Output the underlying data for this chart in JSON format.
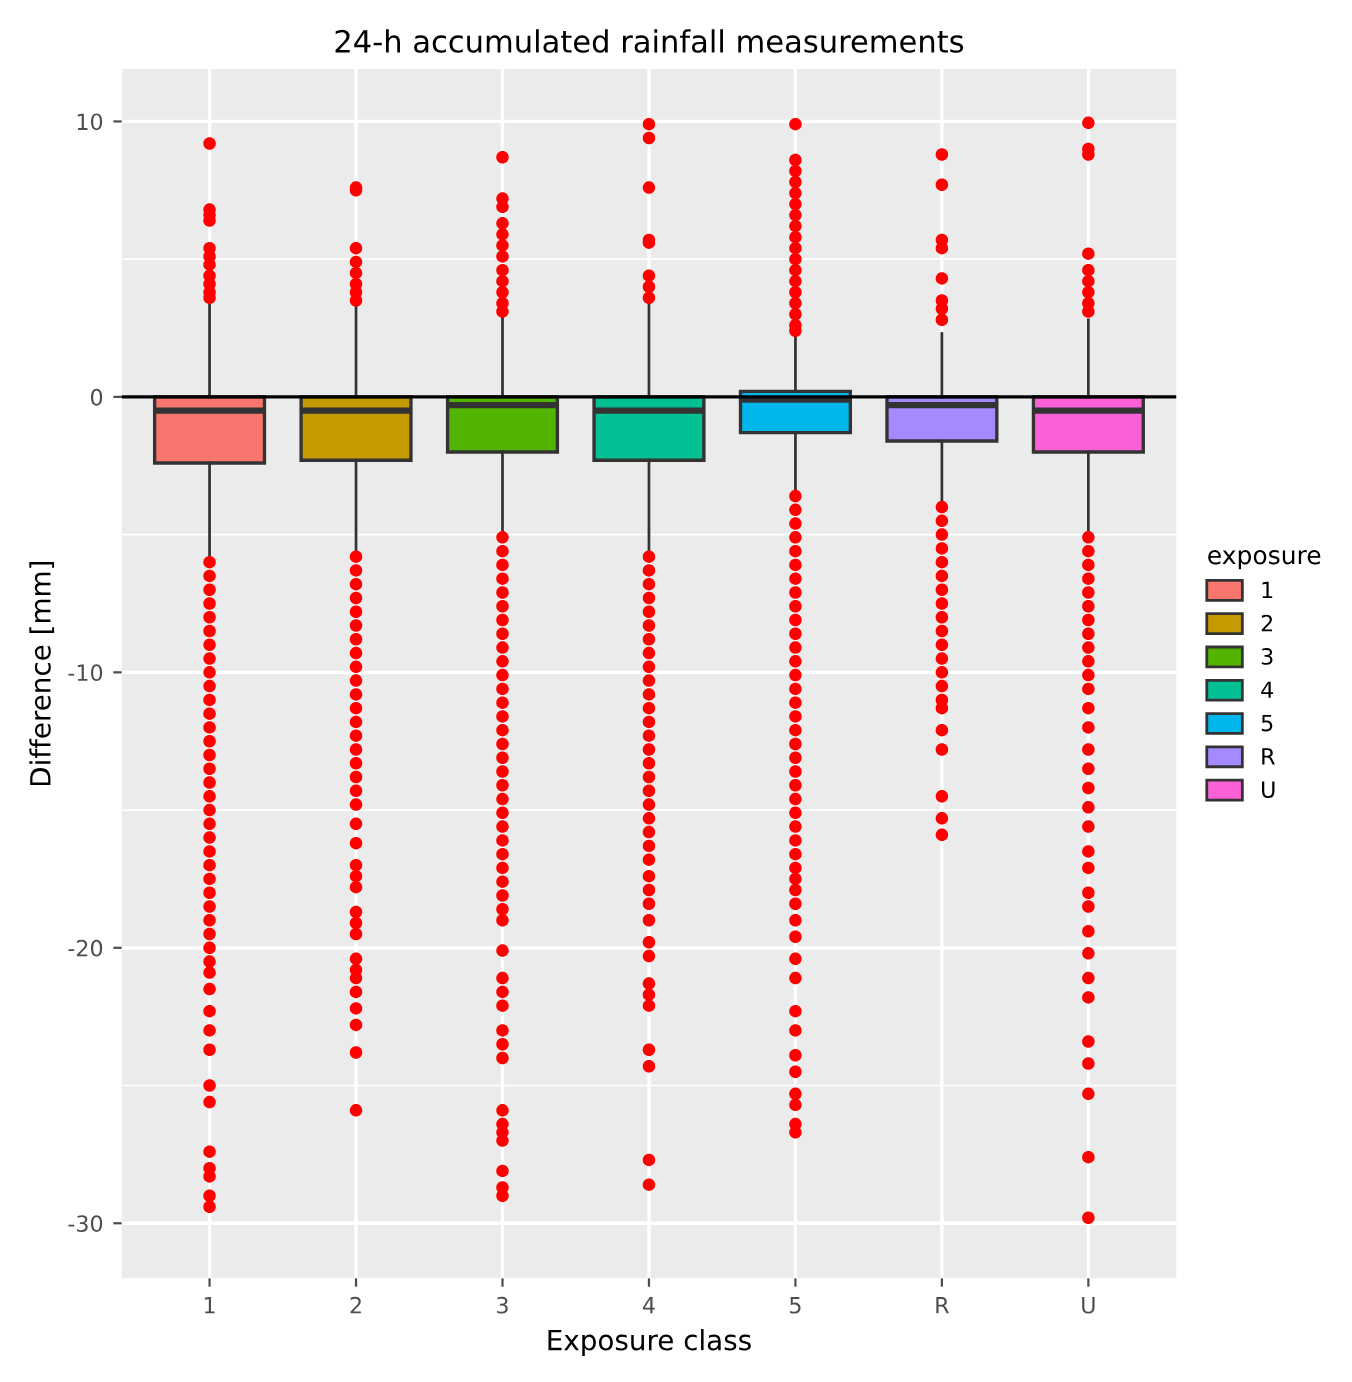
{
  "chart_data": {
    "type": "box",
    "title": "24-h accumulated rainfall measurements",
    "xlabel": "Exposure class",
    "ylabel": "Difference [mm]",
    "legend_title": "exposure",
    "categories": [
      "1",
      "2",
      "3",
      "4",
      "5",
      "R",
      "U"
    ],
    "series": [
      {
        "name": "1",
        "color": "#f8766d",
        "boxes": [
          {
            "low": -5.9,
            "q1": -2.4,
            "median": -0.5,
            "q3": 0.0,
            "high": 3.5,
            "outliers": [
              9.2,
              6.8,
              6.6,
              6.4,
              5.4,
              5.1,
              4.8,
              4.4,
              4.1,
              3.8,
              3.6,
              -6.0,
              -6.5,
              -7.0,
              -7.5,
              -8.0,
              -8.5,
              -9.0,
              -9.5,
              -10.0,
              -10.5,
              -11.0,
              -11.5,
              -12.0,
              -12.5,
              -13.0,
              -13.5,
              -14.0,
              -14.5,
              -15.0,
              -15.5,
              -16.0,
              -16.5,
              -17.0,
              -17.5,
              -18.0,
              -18.5,
              -19.0,
              -19.5,
              -20.0,
              -20.5,
              -20.9,
              -21.5,
              -22.3,
              -23.0,
              -23.7,
              -25.0,
              -25.6,
              -27.4,
              -28.0,
              -28.3,
              -29.0,
              -29.4
            ]
          },
          null,
          null,
          null,
          null,
          null,
          null
        ]
      },
      {
        "name": "2",
        "color": "#c49a00",
        "boxes": [
          null,
          {
            "low": -5.7,
            "q1": -2.3,
            "median": -0.5,
            "q3": 0.0,
            "high": 3.4,
            "outliers": [
              7.6,
              7.5,
              5.4,
              4.9,
              4.5,
              4.1,
              3.8,
              3.5,
              -5.8,
              -6.3,
              -6.8,
              -7.3,
              -7.8,
              -8.3,
              -8.8,
              -9.3,
              -9.8,
              -10.3,
              -10.8,
              -11.3,
              -11.8,
              -12.3,
              -12.8,
              -13.3,
              -13.8,
              -14.3,
              -14.8,
              -15.5,
              -16.2,
              -17.0,
              -17.4,
              -17.8,
              -18.7,
              -19.1,
              -19.5,
              -20.4,
              -20.8,
              -21.1,
              -21.6,
              -22.2,
              -22.8,
              -23.8,
              -25.9
            ]
          },
          null,
          null,
          null,
          null,
          null
        ]
      },
      {
        "name": "3",
        "color": "#53b400",
        "boxes": [
          null,
          null,
          {
            "low": -5.0,
            "q1": -2.0,
            "median": -0.3,
            "q3": 0.0,
            "high": 3.0,
            "outliers": [
              8.7,
              7.2,
              6.9,
              6.3,
              5.9,
              5.5,
              5.1,
              4.6,
              4.2,
              3.8,
              3.4,
              3.1,
              -5.1,
              -5.6,
              -6.1,
              -6.6,
              -7.1,
              -7.6,
              -8.1,
              -8.6,
              -9.1,
              -9.6,
              -10.1,
              -10.6,
              -11.1,
              -11.6,
              -12.1,
              -12.6,
              -13.1,
              -13.6,
              -14.1,
              -14.6,
              -15.1,
              -15.6,
              -16.1,
              -16.6,
              -17.1,
              -17.6,
              -18.1,
              -18.6,
              -19.0,
              -20.1,
              -21.1,
              -21.6,
              -22.1,
              -23.0,
              -23.5,
              -24.0,
              -25.9,
              -26.4,
              -26.7,
              -27.0,
              -28.1,
              -28.7,
              -29.0
            ]
          },
          null,
          null,
          null,
          null
        ]
      },
      {
        "name": "4",
        "color": "#00c094",
        "boxes": [
          null,
          null,
          null,
          {
            "low": -5.7,
            "q1": -2.3,
            "median": -0.5,
            "q3": 0.0,
            "high": 3.4,
            "outliers": [
              9.9,
              9.4,
              7.6,
              5.7,
              5.6,
              4.4,
              4.0,
              3.6,
              -5.8,
              -6.3,
              -6.8,
              -7.3,
              -7.8,
              -8.3,
              -8.8,
              -9.3,
              -9.8,
              -10.3,
              -10.8,
              -11.3,
              -11.8,
              -12.3,
              -12.8,
              -13.3,
              -13.8,
              -14.3,
              -14.8,
              -15.3,
              -15.8,
              -16.3,
              -16.8,
              -17.4,
              -17.9,
              -18.4,
              -19.0,
              -19.8,
              -20.3,
              -21.3,
              -21.7,
              -22.1,
              -23.7,
              -24.3,
              -27.7,
              -28.6
            ]
          },
          null,
          null,
          null
        ]
      },
      {
        "name": "5",
        "color": "#00b6eb",
        "boxes": [
          null,
          null,
          null,
          null,
          {
            "low": -3.5,
            "q1": -1.3,
            "median": -0.1,
            "q3": 0.2,
            "high": 2.3,
            "outliers": [
              9.9,
              8.6,
              8.2,
              7.8,
              7.4,
              7.0,
              6.6,
              6.2,
              5.8,
              5.4,
              5.0,
              4.6,
              4.2,
              3.8,
              3.4,
              3.0,
              2.6,
              2.4,
              -3.6,
              -4.1,
              -4.6,
              -5.1,
              -5.6,
              -6.1,
              -6.6,
              -7.1,
              -7.6,
              -8.1,
              -8.6,
              -9.1,
              -9.6,
              -10.1,
              -10.6,
              -11.1,
              -11.6,
              -12.1,
              -12.6,
              -13.1,
              -13.6,
              -14.1,
              -14.6,
              -15.1,
              -15.6,
              -16.1,
              -16.6,
              -17.1,
              -17.5,
              -17.9,
              -18.4,
              -19.0,
              -19.6,
              -20.4,
              -21.1,
              -22.3,
              -23.0,
              -23.9,
              -24.5,
              -25.3,
              -25.7,
              -26.4,
              -26.7
            ]
          },
          null,
          null
        ]
      },
      {
        "name": "R",
        "color": "#a58aff",
        "boxes": [
          null,
          null,
          null,
          null,
          null,
          {
            "low": -3.9,
            "q1": -1.6,
            "median": -0.3,
            "q3": 0.0,
            "high": 2.3,
            "outliers": [
              8.8,
              7.7,
              5.7,
              5.4,
              4.3,
              3.5,
              3.2,
              2.8,
              -4.0,
              -4.5,
              -5.0,
              -5.5,
              -6.0,
              -6.5,
              -7.0,
              -7.5,
              -8.0,
              -8.5,
              -9.0,
              -9.5,
              -10.0,
              -10.5,
              -11.0,
              -11.3,
              -12.1,
              -12.8,
              -14.5,
              -15.3,
              -15.9
            ]
          },
          null
        ]
      },
      {
        "name": "U",
        "color": "#fb61d7",
        "boxes": [
          null,
          null,
          null,
          null,
          null,
          null,
          {
            "low": -5.0,
            "q1": -2.0,
            "median": -0.5,
            "q3": 0.0,
            "high": 2.8,
            "outliers": [
              9.95,
              9.0,
              8.8,
              5.2,
              4.6,
              4.2,
              3.8,
              3.4,
              3.1,
              -5.1,
              -5.6,
              -6.1,
              -6.6,
              -7.1,
              -7.6,
              -8.1,
              -8.6,
              -9.1,
              -9.6,
              -10.1,
              -10.6,
              -11.3,
              -12.0,
              -12.8,
              -13.5,
              -14.2,
              -14.9,
              -15.6,
              -16.5,
              -17.1,
              -18.0,
              -18.5,
              -19.4,
              -20.2,
              -21.1,
              -21.8,
              -23.4,
              -24.2,
              -25.3,
              -27.6,
              -29.8
            ]
          }
        ]
      }
    ],
    "ylim": [
      -32,
      11.9
    ],
    "yticks": [
      -30,
      -20,
      -10,
      0,
      10
    ],
    "ref_lines": [
      {
        "axis": "y",
        "value": 0,
        "color": "#000000"
      }
    ],
    "grid": true,
    "legend": "right"
  }
}
